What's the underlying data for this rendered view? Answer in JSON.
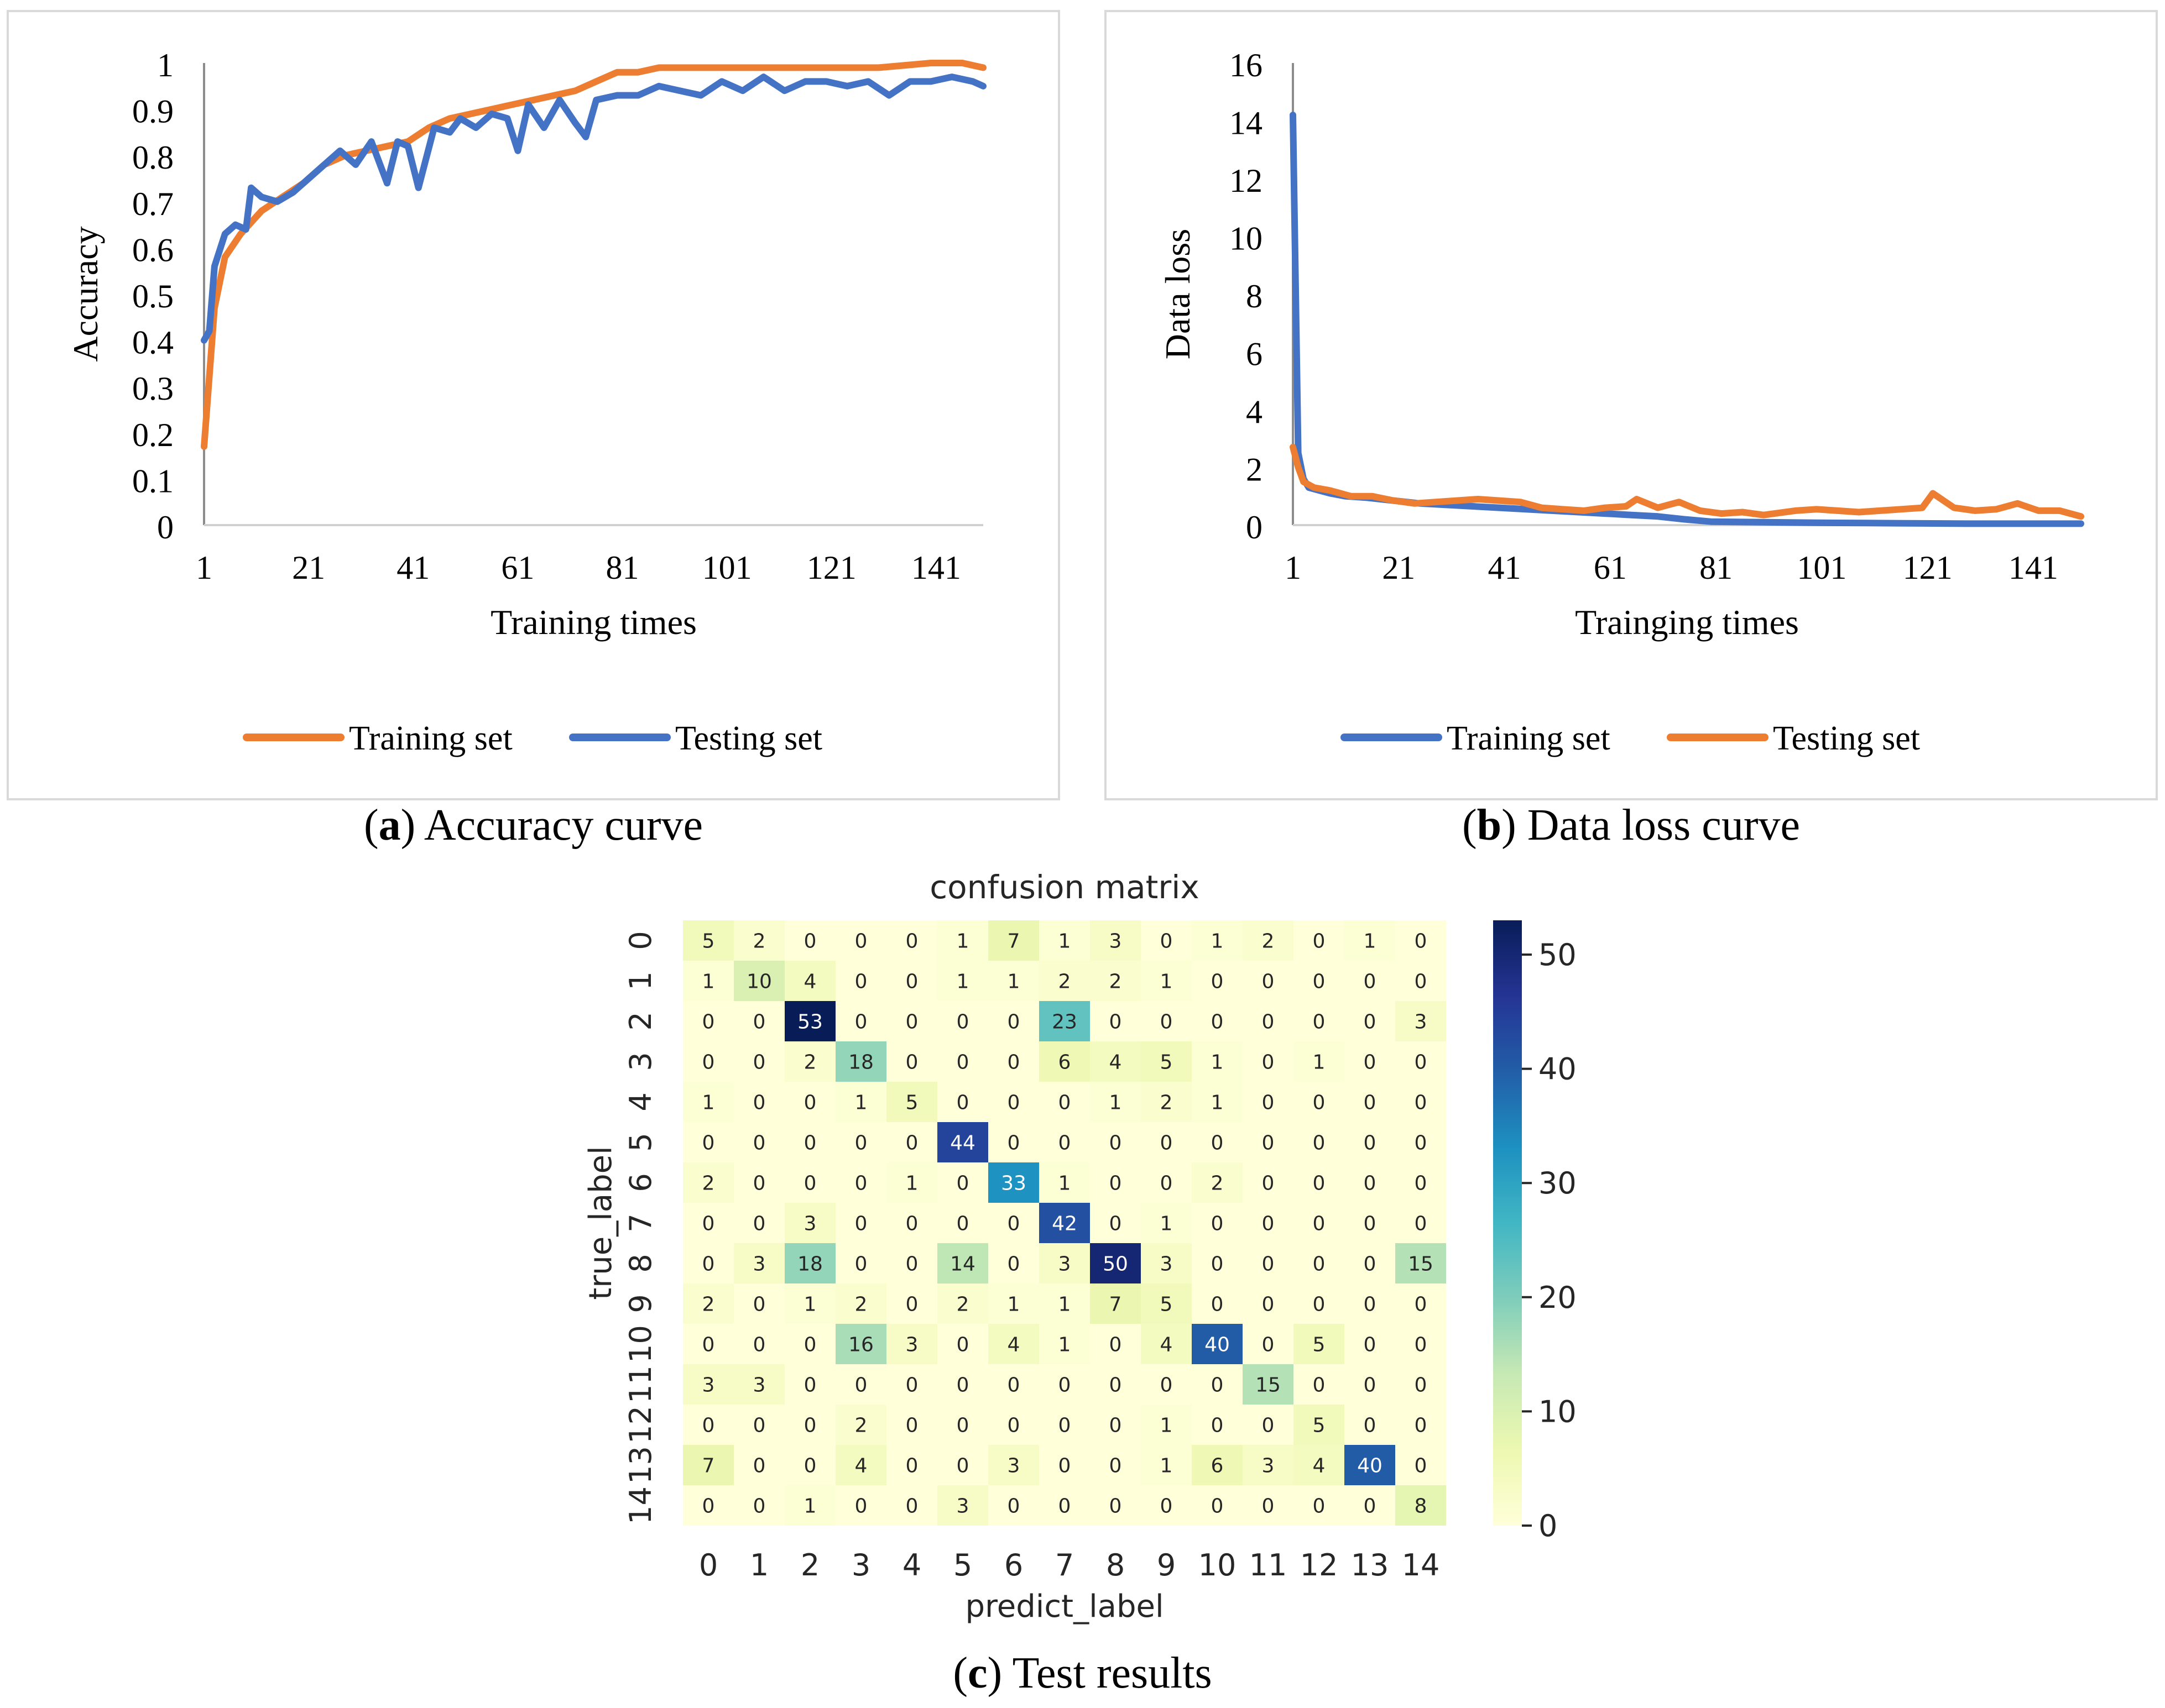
{
  "chart_data": [
    {
      "id": "a",
      "type": "line",
      "title": "",
      "xlabel": "Training times",
      "ylabel": "Accuracy",
      "xlim": [
        1,
        150
      ],
      "ylim": [
        0,
        1
      ],
      "xticks": [
        "1",
        "21",
        "41",
        "61",
        "81",
        "101",
        "121",
        "141"
      ],
      "yticks": [
        "0",
        "0.1",
        "0.2",
        "0.3",
        "0.4",
        "0.5",
        "0.6",
        "0.7",
        "0.8",
        "0.9",
        "1"
      ],
      "grid": false,
      "legend": "bottom",
      "series": [
        {
          "name": "Training set",
          "color": "#ED7D31",
          "x": [
            1,
            3,
            5,
            8,
            12,
            16,
            20,
            24,
            28,
            32,
            36,
            40,
            44,
            48,
            52,
            56,
            60,
            64,
            68,
            72,
            76,
            80,
            84,
            88,
            92,
            96,
            100,
            110,
            120,
            130,
            140,
            146,
            150
          ],
          "y": [
            0.17,
            0.47,
            0.58,
            0.63,
            0.68,
            0.71,
            0.74,
            0.78,
            0.8,
            0.81,
            0.82,
            0.83,
            0.86,
            0.88,
            0.89,
            0.9,
            0.91,
            0.92,
            0.93,
            0.94,
            0.96,
            0.98,
            0.98,
            0.99,
            0.99,
            0.99,
            0.99,
            0.99,
            0.99,
            0.99,
            1.0,
            1.0,
            0.99
          ]
        },
        {
          "name": "Testing set",
          "color": "#4472C4",
          "x": [
            1,
            2,
            3,
            5,
            7,
            9,
            10,
            12,
            15,
            18,
            20,
            22,
            24,
            27,
            30,
            33,
            36,
            38,
            40,
            42,
            45,
            48,
            50,
            53,
            56,
            59,
            61,
            63,
            66,
            69,
            72,
            74,
            76,
            80,
            84,
            88,
            92,
            96,
            100,
            104,
            108,
            112,
            116,
            120,
            124,
            128,
            132,
            136,
            140,
            144,
            148,
            150
          ],
          "y": [
            0.4,
            0.42,
            0.56,
            0.63,
            0.65,
            0.64,
            0.73,
            0.71,
            0.7,
            0.72,
            0.74,
            0.76,
            0.78,
            0.81,
            0.78,
            0.83,
            0.74,
            0.83,
            0.82,
            0.73,
            0.86,
            0.85,
            0.88,
            0.86,
            0.89,
            0.88,
            0.81,
            0.91,
            0.86,
            0.92,
            0.87,
            0.84,
            0.92,
            0.93,
            0.93,
            0.95,
            0.94,
            0.93,
            0.96,
            0.94,
            0.97,
            0.94,
            0.96,
            0.96,
            0.95,
            0.96,
            0.93,
            0.96,
            0.96,
            0.97,
            0.96,
            0.95
          ]
        }
      ]
    },
    {
      "id": "b",
      "type": "line",
      "title": "",
      "xlabel": "Trainging times",
      "ylabel": "Data loss",
      "xlim": [
        1,
        150
      ],
      "ylim": [
        0,
        16
      ],
      "xticks": [
        "1",
        "21",
        "41",
        "61",
        "81",
        "101",
        "121",
        "141"
      ],
      "yticks": [
        "0",
        "2",
        "4",
        "6",
        "8",
        "10",
        "12",
        "14",
        "16"
      ],
      "grid": false,
      "legend": "bottom",
      "series": [
        {
          "name": "Training set",
          "color": "#4472C4",
          "x": [
            1,
            2,
            3,
            4,
            6,
            8,
            11,
            15,
            20,
            25,
            30,
            35,
            40,
            45,
            50,
            55,
            60,
            65,
            70,
            75,
            80,
            90,
            100,
            110,
            120,
            130,
            140,
            150
          ],
          "y": [
            14.2,
            2.5,
            1.6,
            1.3,
            1.2,
            1.1,
            1.0,
            0.95,
            0.85,
            0.75,
            0.7,
            0.65,
            0.6,
            0.55,
            0.5,
            0.45,
            0.4,
            0.35,
            0.3,
            0.2,
            0.12,
            0.1,
            0.08,
            0.07,
            0.06,
            0.05,
            0.05,
            0.05
          ]
        },
        {
          "name": "Testing set",
          "color": "#ED7D31",
          "x": [
            1,
            2,
            3,
            5,
            8,
            12,
            16,
            20,
            24,
            28,
            32,
            36,
            40,
            44,
            48,
            52,
            56,
            60,
            64,
            66,
            70,
            74,
            78,
            82,
            86,
            90,
            96,
            100,
            104,
            108,
            112,
            116,
            120,
            122,
            126,
            130,
            134,
            138,
            142,
            146,
            150
          ],
          "y": [
            2.7,
            2.0,
            1.5,
            1.3,
            1.2,
            1.0,
            1.0,
            0.85,
            0.75,
            0.8,
            0.85,
            0.9,
            0.85,
            0.8,
            0.6,
            0.55,
            0.5,
            0.6,
            0.65,
            0.9,
            0.6,
            0.8,
            0.5,
            0.4,
            0.45,
            0.35,
            0.5,
            0.55,
            0.5,
            0.45,
            0.5,
            0.55,
            0.6,
            1.1,
            0.6,
            0.5,
            0.55,
            0.75,
            0.5,
            0.5,
            0.3
          ]
        }
      ]
    },
    {
      "id": "c",
      "type": "heatmap",
      "title": "confusion matrix",
      "xlabel": "predict_label",
      "ylabel": "true_label",
      "xticks": [
        "0",
        "1",
        "2",
        "3",
        "4",
        "5",
        "6",
        "7",
        "8",
        "9",
        "10",
        "11",
        "12",
        "13",
        "14"
      ],
      "yticks": [
        "0",
        "1",
        "2",
        "3",
        "4",
        "5",
        "6",
        "7",
        "8",
        "9",
        "10",
        "11",
        "12",
        "13",
        "14"
      ],
      "colorbar": {
        "min": 0,
        "max": 53,
        "ticks": [
          "0",
          "10",
          "20",
          "30",
          "40",
          "50"
        ]
      },
      "values": [
        [
          5,
          2,
          0,
          0,
          0,
          1,
          7,
          1,
          3,
          0,
          1,
          2,
          0,
          1,
          0
        ],
        [
          1,
          10,
          4,
          0,
          0,
          1,
          1,
          2,
          2,
          1,
          0,
          0,
          0,
          0,
          0
        ],
        [
          0,
          0,
          53,
          0,
          0,
          0,
          0,
          23,
          0,
          0,
          0,
          0,
          0,
          0,
          3
        ],
        [
          0,
          0,
          2,
          18,
          0,
          0,
          0,
          6,
          4,
          5,
          1,
          0,
          1,
          0,
          0
        ],
        [
          1,
          0,
          0,
          1,
          5,
          0,
          0,
          0,
          1,
          2,
          1,
          0,
          0,
          0,
          0
        ],
        [
          0,
          0,
          0,
          0,
          0,
          44,
          0,
          0,
          0,
          0,
          0,
          0,
          0,
          0,
          0
        ],
        [
          2,
          0,
          0,
          0,
          1,
          0,
          33,
          1,
          0,
          0,
          2,
          0,
          0,
          0,
          0
        ],
        [
          0,
          0,
          3,
          0,
          0,
          0,
          0,
          42,
          0,
          1,
          0,
          0,
          0,
          0,
          0
        ],
        [
          0,
          3,
          18,
          0,
          0,
          14,
          0,
          3,
          50,
          3,
          0,
          0,
          0,
          0,
          15
        ],
        [
          2,
          0,
          1,
          2,
          0,
          2,
          1,
          1,
          7,
          5,
          0,
          0,
          0,
          0,
          0
        ],
        [
          0,
          0,
          0,
          16,
          3,
          0,
          4,
          1,
          0,
          4,
          40,
          0,
          5,
          0,
          0
        ],
        [
          3,
          3,
          0,
          0,
          0,
          0,
          0,
          0,
          0,
          0,
          0,
          15,
          0,
          0,
          0
        ],
        [
          0,
          0,
          0,
          2,
          0,
          0,
          0,
          0,
          0,
          1,
          0,
          0,
          5,
          0,
          0
        ],
        [
          7,
          0,
          0,
          4,
          0,
          0,
          3,
          0,
          0,
          1,
          6,
          3,
          4,
          40,
          0
        ],
        [
          0,
          0,
          1,
          0,
          0,
          3,
          0,
          0,
          0,
          0,
          0,
          0,
          0,
          0,
          8
        ]
      ]
    }
  ],
  "captions": {
    "a": {
      "letter": "a",
      "text": " Accuracy curve"
    },
    "b": {
      "letter": "b",
      "text": " Data loss curve"
    },
    "c": {
      "letter": "c",
      "text": " Test results"
    }
  }
}
